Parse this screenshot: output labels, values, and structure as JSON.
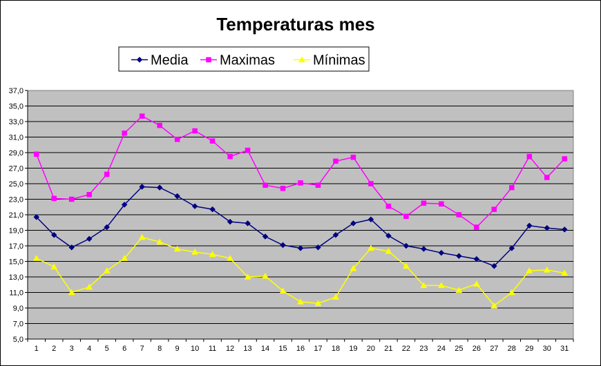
{
  "chart_data": {
    "type": "line",
    "title": "Temperaturas mes",
    "xlabel": "",
    "ylabel": "",
    "x": [
      1,
      2,
      3,
      4,
      5,
      6,
      7,
      8,
      9,
      10,
      11,
      12,
      13,
      14,
      15,
      16,
      17,
      18,
      19,
      20,
      21,
      22,
      23,
      24,
      25,
      26,
      27,
      28,
      29,
      30,
      31
    ],
    "y_ticks": [
      "5,0",
      "7,0",
      "9,0",
      "11,0",
      "13,0",
      "15,0",
      "17,0",
      "19,0",
      "21,0",
      "23,0",
      "25,0",
      "27,0",
      "29,0",
      "31,0",
      "33,0",
      "35,0",
      "37,0"
    ],
    "ylim": [
      5,
      37
    ],
    "grid": "horizontal",
    "plot_background": "#C0C0C0",
    "legend_position": "top",
    "series": [
      {
        "name": "Media",
        "color": "#000080",
        "marker": "diamond",
        "values": [
          20.7,
          18.4,
          16.8,
          17.9,
          19.4,
          22.3,
          24.6,
          24.5,
          23.4,
          22.1,
          21.7,
          20.1,
          19.9,
          18.2,
          17.1,
          16.7,
          16.8,
          18.4,
          19.9,
          20.4,
          18.3,
          17.0,
          16.6,
          16.1,
          15.7,
          15.3,
          14.4,
          16.7,
          19.6,
          19.3,
          19.1
        ]
      },
      {
        "name": "Maximas",
        "color": "#FF00FF",
        "marker": "square",
        "values": [
          28.8,
          23.1,
          23.0,
          23.6,
          26.2,
          31.5,
          33.7,
          32.5,
          30.7,
          31.8,
          30.5,
          28.5,
          29.3,
          24.8,
          24.4,
          25.1,
          24.8,
          27.9,
          28.4,
          25.0,
          22.1,
          20.8,
          22.5,
          22.4,
          21.0,
          19.4,
          21.7,
          24.5,
          28.5,
          25.8,
          28.2
        ]
      },
      {
        "name": "Mínimas",
        "color": "#FFFF00",
        "marker": "triangle",
        "values": [
          15.4,
          14.3,
          11.0,
          11.7,
          13.8,
          15.4,
          18.1,
          17.5,
          16.6,
          16.2,
          15.9,
          15.4,
          13.0,
          13.1,
          11.2,
          9.8,
          9.6,
          10.4,
          14.1,
          16.7,
          16.3,
          14.4,
          11.9,
          11.9,
          11.3,
          12.1,
          9.3,
          11.0,
          13.8,
          13.9,
          13.5
        ]
      }
    ]
  }
}
